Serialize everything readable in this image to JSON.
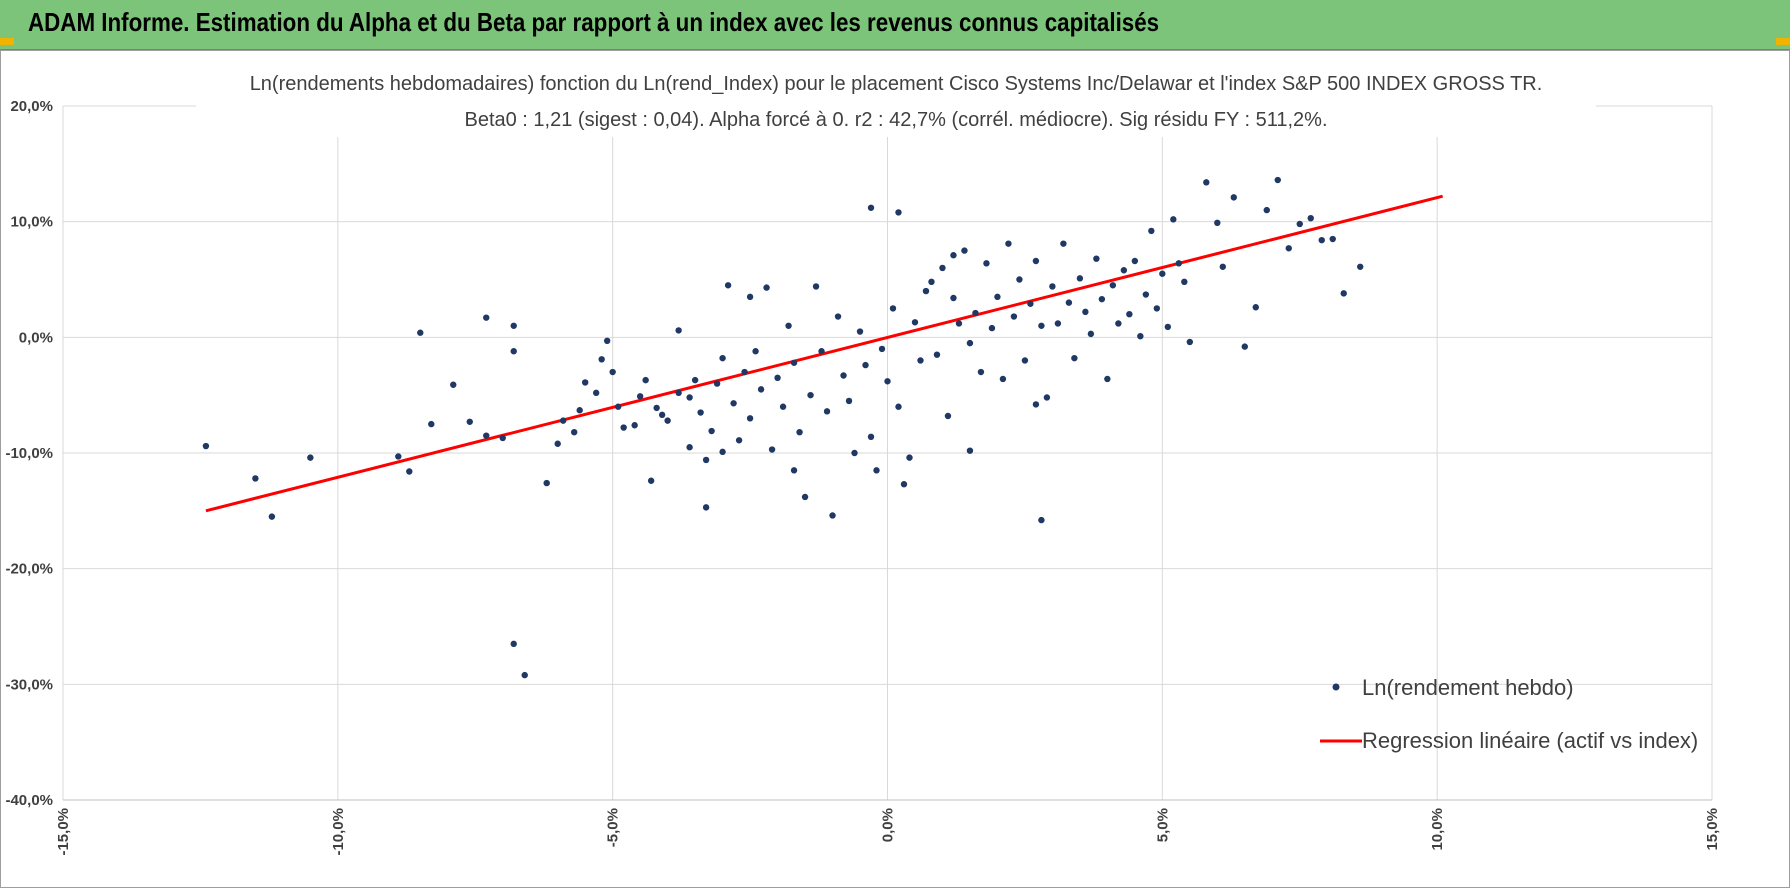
{
  "header": {
    "title": "ADAM Informe. Estimation du Alpha et du Beta par rapport à un index avec les revenus connus capitalisés",
    "background": "#7cc47a"
  },
  "chart_data": {
    "type": "scatter",
    "title": "Ln(rendements hebdomadaires) fonction du Ln(rend_Index) pour le placement Cisco Systems Inc/Delawar et l'index S&P 500 INDEX GROSS TR.",
    "subtitle": "Beta0 : 1,21 (sigest : 0,04). Alpha forcé à 0. r2 : 42,7% (corrél. médiocre). Sig résidu FY : 511,2%.",
    "xlabel": "",
    "ylabel": "",
    "xlim": [
      -0.15,
      0.15
    ],
    "ylim": [
      -0.4,
      0.2
    ],
    "x_ticks": [
      -0.15,
      -0.1,
      -0.05,
      0.0,
      0.05,
      0.1,
      0.15
    ],
    "x_tick_labels": [
      "-15,0%",
      "-10,0%",
      "-5,0%",
      "0,0%",
      "5,0%",
      "10,0%",
      "15,0%"
    ],
    "y_ticks": [
      0.2,
      0.1,
      0.0,
      -0.1,
      -0.2,
      -0.3,
      -0.4
    ],
    "y_tick_labels": [
      "20,0%",
      "10,0%",
      "0,0%",
      "-10,0%",
      "-20,0%",
      "-30,0%",
      "-40,0%"
    ],
    "grid": true,
    "legend_position": "bottom-right",
    "series": [
      {
        "name": "Ln(rendement hebdo)",
        "kind": "scatter",
        "color": "#1f3864",
        "points": [
          [
            -0.124,
            -0.094
          ],
          [
            -0.115,
            -0.122
          ],
          [
            -0.112,
            -0.155
          ],
          [
            -0.105,
            -0.104
          ],
          [
            -0.089,
            -0.103
          ],
          [
            -0.087,
            -0.116
          ],
          [
            -0.085,
            0.004
          ],
          [
            -0.083,
            -0.075
          ],
          [
            -0.079,
            -0.041
          ],
          [
            -0.076,
            -0.073
          ],
          [
            -0.073,
            0.017
          ],
          [
            -0.073,
            -0.085
          ],
          [
            -0.07,
            -0.087
          ],
          [
            -0.068,
            0.01
          ],
          [
            -0.068,
            -0.012
          ],
          [
            -0.068,
            -0.265
          ],
          [
            -0.066,
            -0.292
          ],
          [
            -0.062,
            -0.126
          ],
          [
            -0.06,
            -0.092
          ],
          [
            -0.059,
            -0.072
          ],
          [
            -0.057,
            -0.082
          ],
          [
            -0.056,
            -0.063
          ],
          [
            -0.055,
            -0.039
          ],
          [
            -0.053,
            -0.048
          ],
          [
            -0.052,
            -0.019
          ],
          [
            -0.051,
            -0.003
          ],
          [
            -0.05,
            -0.03
          ],
          [
            -0.049,
            -0.06
          ],
          [
            -0.048,
            -0.078
          ],
          [
            -0.046,
            -0.076
          ],
          [
            -0.045,
            -0.051
          ],
          [
            -0.044,
            -0.037
          ],
          [
            -0.043,
            -0.124
          ],
          [
            -0.042,
            -0.061
          ],
          [
            -0.041,
            -0.067
          ],
          [
            -0.04,
            -0.072
          ],
          [
            -0.038,
            -0.048
          ],
          [
            -0.036,
            -0.095
          ],
          [
            -0.036,
            -0.052
          ],
          [
            -0.035,
            -0.037
          ],
          [
            -0.034,
            -0.065
          ],
          [
            -0.033,
            -0.106
          ],
          [
            -0.033,
            -0.147
          ],
          [
            -0.032,
            -0.081
          ],
          [
            -0.031,
            -0.04
          ],
          [
            -0.03,
            -0.018
          ],
          [
            -0.029,
            0.045
          ],
          [
            -0.028,
            -0.057
          ],
          [
            -0.027,
            -0.089
          ],
          [
            -0.026,
            -0.03
          ],
          [
            -0.025,
            -0.07
          ],
          [
            -0.024,
            -0.012
          ],
          [
            -0.023,
            -0.045
          ],
          [
            -0.022,
            0.043
          ],
          [
            -0.021,
            -0.097
          ],
          [
            -0.02,
            -0.035
          ],
          [
            -0.019,
            -0.06
          ],
          [
            -0.018,
            0.01
          ],
          [
            -0.017,
            -0.022
          ],
          [
            -0.016,
            -0.082
          ],
          [
            -0.015,
            -0.138
          ],
          [
            -0.014,
            -0.05
          ],
          [
            -0.013,
            0.044
          ],
          [
            -0.012,
            -0.012
          ],
          [
            -0.011,
            -0.064
          ],
          [
            -0.01,
            -0.154
          ],
          [
            -0.009,
            0.018
          ],
          [
            -0.008,
            -0.033
          ],
          [
            -0.007,
            -0.055
          ],
          [
            -0.006,
            -0.1
          ],
          [
            -0.005,
            0.005
          ],
          [
            -0.004,
            -0.024
          ],
          [
            -0.003,
            -0.086
          ],
          [
            -0.002,
            -0.115
          ],
          [
            -0.001,
            -0.01
          ],
          [
            0.0,
            -0.038
          ],
          [
            0.001,
            0.025
          ],
          [
            0.002,
            -0.06
          ],
          [
            0.003,
            -0.127
          ],
          [
            0.004,
            -0.104
          ],
          [
            0.005,
            0.013
          ],
          [
            0.006,
            -0.02
          ],
          [
            0.007,
            0.04
          ],
          [
            0.008,
            0.048
          ],
          [
            0.009,
            -0.015
          ],
          [
            0.01,
            0.06
          ],
          [
            0.011,
            -0.068
          ],
          [
            0.012,
            0.034
          ],
          [
            0.013,
            0.012
          ],
          [
            0.014,
            0.075
          ],
          [
            0.015,
            -0.005
          ],
          [
            0.016,
            0.021
          ],
          [
            0.017,
            -0.03
          ],
          [
            0.018,
            0.064
          ],
          [
            0.019,
            0.008
          ],
          [
            0.02,
            0.035
          ],
          [
            0.021,
            -0.036
          ],
          [
            0.022,
            0.081
          ],
          [
            0.023,
            0.018
          ],
          [
            0.024,
            0.05
          ],
          [
            0.025,
            -0.02
          ],
          [
            0.026,
            0.029
          ],
          [
            0.027,
            0.066
          ],
          [
            0.028,
            0.01
          ],
          [
            0.029,
            -0.052
          ],
          [
            0.03,
            0.044
          ],
          [
            0.031,
            0.012
          ],
          [
            0.032,
            0.081
          ],
          [
            0.033,
            0.03
          ],
          [
            0.034,
            -0.018
          ],
          [
            0.035,
            0.051
          ],
          [
            0.036,
            0.022
          ],
          [
            0.037,
            0.003
          ],
          [
            0.038,
            0.068
          ],
          [
            0.039,
            0.033
          ],
          [
            0.04,
            -0.036
          ],
          [
            0.041,
            0.045
          ],
          [
            0.042,
            0.012
          ],
          [
            0.043,
            0.058
          ],
          [
            0.044,
            0.02
          ],
          [
            0.045,
            0.066
          ],
          [
            0.046,
            0.001
          ],
          [
            0.047,
            0.037
          ],
          [
            0.048,
            0.092
          ],
          [
            0.049,
            0.025
          ],
          [
            0.05,
            0.055
          ],
          [
            0.051,
            0.009
          ],
          [
            0.052,
            0.102
          ],
          [
            0.053,
            0.064
          ],
          [
            0.054,
            0.048
          ],
          [
            0.055,
            -0.004
          ],
          [
            0.058,
            0.134
          ],
          [
            0.06,
            0.099
          ],
          [
            0.061,
            0.061
          ],
          [
            0.063,
            0.121
          ],
          [
            0.065,
            -0.008
          ],
          [
            0.067,
            0.026
          ],
          [
            0.069,
            0.11
          ],
          [
            0.071,
            0.136
          ],
          [
            0.073,
            0.077
          ],
          [
            0.075,
            0.098
          ],
          [
            0.077,
            0.103
          ],
          [
            0.079,
            0.084
          ],
          [
            0.081,
            0.085
          ],
          [
            0.083,
            0.038
          ],
          [
            0.086,
            0.061
          ],
          [
            -0.003,
            0.112
          ],
          [
            0.002,
            0.108
          ],
          [
            0.027,
            -0.058
          ],
          [
            0.028,
            -0.158
          ],
          [
            -0.017,
            -0.115
          ],
          [
            -0.03,
            -0.099
          ],
          [
            0.015,
            -0.098
          ],
          [
            0.012,
            0.071
          ],
          [
            -0.025,
            0.035
          ],
          [
            -0.038,
            0.006
          ]
        ]
      },
      {
        "name": "Regression linéaire (actif vs index)",
        "kind": "line",
        "color": "#ff0000",
        "x": [
          -0.124,
          0.101
        ],
        "y": [
          -0.15,
          0.122
        ]
      }
    ]
  }
}
